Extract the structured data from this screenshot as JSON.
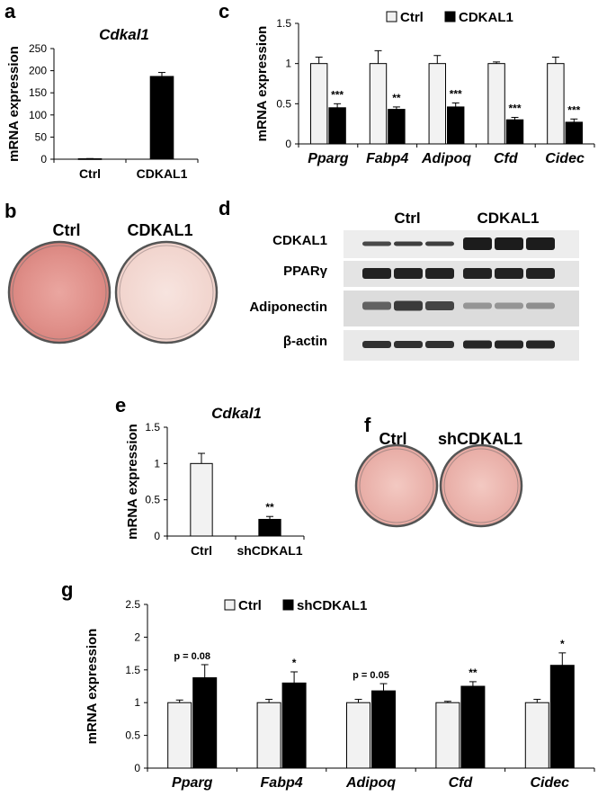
{
  "panels": {
    "a": {
      "letter": "a"
    },
    "b": {
      "letter": "b",
      "label_left": "Ctrl",
      "label_right": "CDKAL1"
    },
    "c": {
      "letter": "c"
    },
    "d": {
      "letter": "d",
      "group_left": "Ctrl",
      "group_right": "CDKAL1",
      "rows": [
        "CDKAL1",
        "PPARγ",
        "Adiponectin",
        "β-actin"
      ]
    },
    "e": {
      "letter": "e"
    },
    "f": {
      "letter": "f",
      "label_left": "Ctrl",
      "label_right": "shCDKAL1"
    },
    "g": {
      "letter": "g"
    }
  },
  "colors": {
    "ctrl_fill": "#f2f2f2",
    "treat_fill": "#000000",
    "stain_ctrl": "#e39a95",
    "stain_pale": "#f3d9d3"
  },
  "chart_data": [
    {
      "id": "a",
      "type": "bar",
      "title": "Cdkal1",
      "ylabel": "mRNA expression",
      "categories": [
        "Ctrl",
        "CDKAL1"
      ],
      "series": [
        {
          "values": [
            1,
            187
          ],
          "errors": [
            0.5,
            9
          ]
        }
      ],
      "ylim": [
        0,
        250
      ],
      "yticks": [
        "0",
        "50",
        "100",
        "150",
        "200",
        "250"
      ]
    },
    {
      "id": "c",
      "type": "bar",
      "ylabel": "mRNA expression",
      "categories": [
        "Pparg",
        "Fabp4",
        "Adipoq",
        "Cfd",
        "Cidec"
      ],
      "series": [
        {
          "name": "Ctrl",
          "values": [
            1.0,
            1.0,
            1.0,
            1.0,
            1.0
          ],
          "errors": [
            0.08,
            0.16,
            0.1,
            0.02,
            0.08
          ]
        },
        {
          "name": "CDKAL1",
          "values": [
            0.45,
            0.43,
            0.46,
            0.3,
            0.27
          ],
          "errors": [
            0.05,
            0.03,
            0.05,
            0.03,
            0.04
          ]
        }
      ],
      "annotations": [
        "***",
        "**",
        "***",
        "***",
        "***"
      ],
      "ylim": [
        0,
        1.5
      ],
      "yticks": [
        "0",
        "0.5",
        "1",
        "1.5"
      ],
      "legend": "top"
    },
    {
      "id": "e",
      "type": "bar",
      "title": "Cdkal1",
      "ylabel": "mRNA expression",
      "categories": [
        "Ctrl",
        "shCDKAL1"
      ],
      "series": [
        {
          "values": [
            1.0,
            0.23
          ],
          "errors": [
            0.14,
            0.04
          ]
        }
      ],
      "annotations": [
        "",
        "**"
      ],
      "ylim": [
        0,
        1.5
      ],
      "yticks": [
        "0",
        "0.5",
        "1",
        "1.5"
      ]
    },
    {
      "id": "g",
      "type": "bar",
      "ylabel": "mRNA expression",
      "categories": [
        "Pparg",
        "Fabp4",
        "Adipoq",
        "Cfd",
        "Cidec"
      ],
      "series": [
        {
          "name": "Ctrl",
          "values": [
            1.0,
            1.0,
            1.0,
            1.0,
            1.0
          ],
          "errors": [
            0.04,
            0.05,
            0.05,
            0.02,
            0.05
          ]
        },
        {
          "name": "shCDKAL1",
          "values": [
            1.38,
            1.3,
            1.18,
            1.25,
            1.57
          ],
          "errors": [
            0.2,
            0.17,
            0.11,
            0.07,
            0.19
          ]
        }
      ],
      "annotations": [
        "p = 0.08",
        "*",
        "p = 0.05",
        "**",
        "*"
      ],
      "ylim": [
        0,
        2.5
      ],
      "yticks": [
        "0",
        "0.5",
        "1",
        "1.5",
        "2",
        "2.5"
      ],
      "legend": "top"
    }
  ]
}
